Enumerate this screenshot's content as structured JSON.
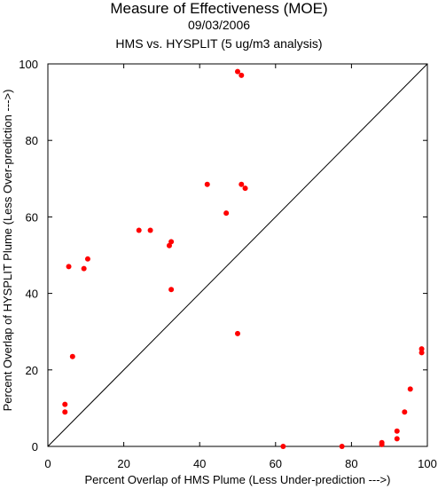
{
  "chart_data": {
    "type": "scatter",
    "title": "Measure of Effectiveness (MOE)",
    "date": "09/03/2006",
    "subtitle": "HMS vs. HYSPLIT  (5 ug/m3 analysis)",
    "xlabel": "Percent Overlap of HMS Plume (Less Under-prediction --->)",
    "ylabel": "Percent Overlap of HYSPLIT Plume (Less Over-prediction --->)",
    "xlim": [
      0,
      100
    ],
    "ylim": [
      0,
      100
    ],
    "xticks": [
      0,
      20,
      40,
      60,
      80,
      100
    ],
    "yticks": [
      0,
      20,
      40,
      60,
      80,
      100
    ],
    "x_tick_labels": [
      "0",
      "20",
      "40",
      "60",
      "80",
      "100"
    ],
    "y_tick_labels": [
      "0",
      "20",
      "40",
      "60",
      "80",
      "100"
    ],
    "diagonal_line": true,
    "point_color": "#ff0000",
    "points": [
      {
        "x": 50,
        "y": 98
      },
      {
        "x": 51,
        "y": 97
      },
      {
        "x": 42,
        "y": 68.5
      },
      {
        "x": 51,
        "y": 68.5
      },
      {
        "x": 52,
        "y": 67.5
      },
      {
        "x": 47,
        "y": 61
      },
      {
        "x": 24,
        "y": 56.5
      },
      {
        "x": 27,
        "y": 56.5
      },
      {
        "x": 32.5,
        "y": 53.5
      },
      {
        "x": 32,
        "y": 52.5
      },
      {
        "x": 10.5,
        "y": 49
      },
      {
        "x": 5.5,
        "y": 47
      },
      {
        "x": 9.5,
        "y": 46.5
      },
      {
        "x": 32.5,
        "y": 41
      },
      {
        "x": 50,
        "y": 29.5
      },
      {
        "x": 6.5,
        "y": 23.5
      },
      {
        "x": 4.5,
        "y": 11
      },
      {
        "x": 4.5,
        "y": 9
      },
      {
        "x": 62,
        "y": 0
      },
      {
        "x": 77.5,
        "y": 0
      },
      {
        "x": 88,
        "y": 1
      },
      {
        "x": 88,
        "y": 0.5
      },
      {
        "x": 92,
        "y": 4
      },
      {
        "x": 92,
        "y": 2
      },
      {
        "x": 94,
        "y": 9
      },
      {
        "x": 95.5,
        "y": 15
      },
      {
        "x": 98.5,
        "y": 25.5
      },
      {
        "x": 98.5,
        "y": 24.5
      }
    ]
  }
}
